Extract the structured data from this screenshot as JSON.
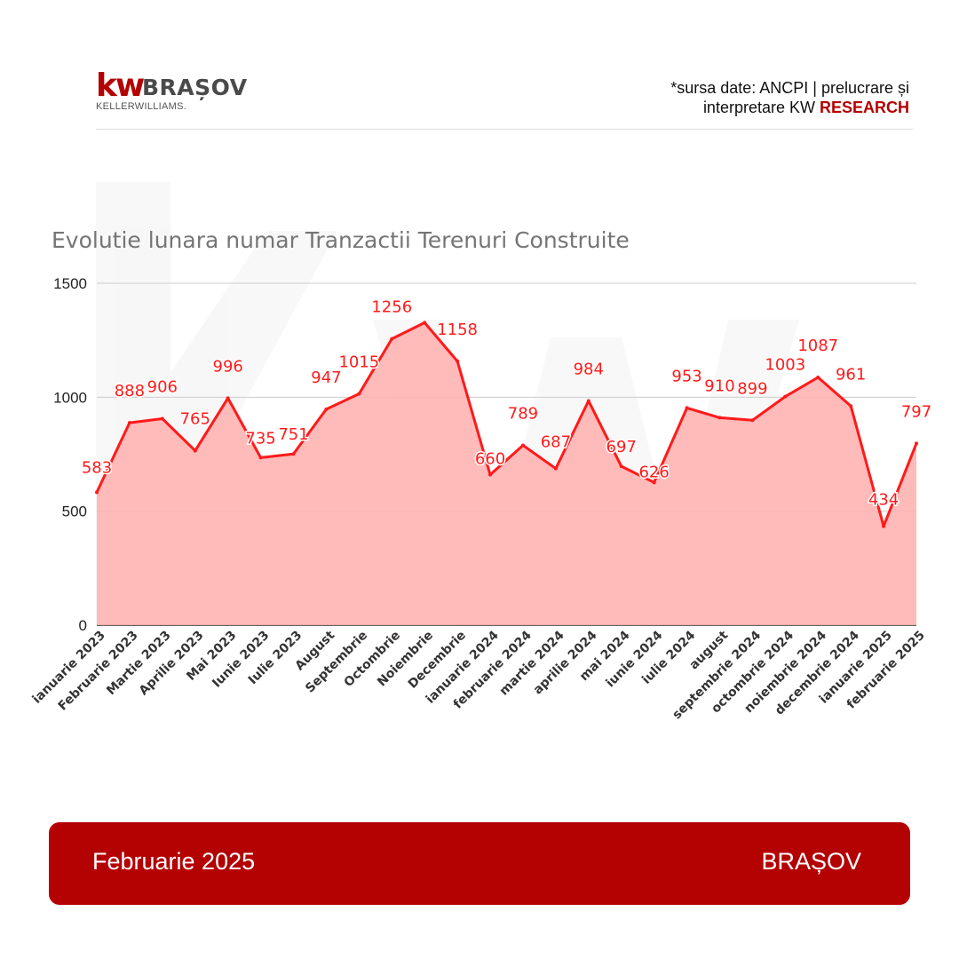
{
  "brand": {
    "logo_kw": "kw",
    "city": "BRAȘOV",
    "sub": "KELLERWILLIAMS."
  },
  "source": {
    "line1": "*sursa date: ANCPI  |  prelucrare și",
    "line2_prefix": "interpretare  KW ",
    "line2_emphasis": "RESEARCH"
  },
  "footer": {
    "period": "Februarie 2025",
    "city": "BRAȘOV"
  },
  "colors": {
    "brand_red": "#b40101",
    "line_red": "#ff1a1a",
    "area_fill": "#ffb3b3"
  },
  "chart_data": {
    "type": "area",
    "title": "Evolutie lunara numar Tranzactii Terenuri Construite",
    "xlabel": "",
    "ylabel": "",
    "ylim": [
      0,
      1500
    ],
    "yticks": [
      0,
      500,
      1000,
      1500
    ],
    "grid": true,
    "categories": [
      "ianuarie 2023",
      "Februarie 2023",
      "Martie 2023",
      "Aprilie 2023",
      "Mai 2023",
      "Iunie 2023",
      "Iulie 2023",
      "August",
      "Septembrie",
      "Octombrie",
      "Noiembrie",
      "Decembrie",
      "ianuarie 2024",
      "februarie 2024",
      "martie 2024",
      "aprilie 2024",
      "mai 2024",
      "iunie 2024",
      "iulie 2024",
      "august",
      "septembrie 2024",
      "octombrie 2024",
      "noiembrie 2024",
      "decembrie 2024",
      "ianuarie 2025",
      "februarie 2025"
    ],
    "series": [
      {
        "values": [
          583,
          888,
          906,
          765,
          996,
          735,
          751,
          947,
          1015,
          1256,
          1327,
          1158,
          660,
          789,
          687,
          984,
          697,
          626,
          953,
          910,
          899,
          1003,
          1087,
          961,
          434,
          797
        ],
        "labels": [
          "583",
          "888",
          "906",
          "765",
          "996",
          "735",
          "751",
          "947",
          "1015",
          "1256",
          "",
          "1158",
          "660",
          "789",
          "687",
          "984",
          "697",
          "626",
          "953",
          "910",
          "899",
          "1003",
          "1087",
          "961",
          "434",
          "797"
        ]
      }
    ]
  }
}
